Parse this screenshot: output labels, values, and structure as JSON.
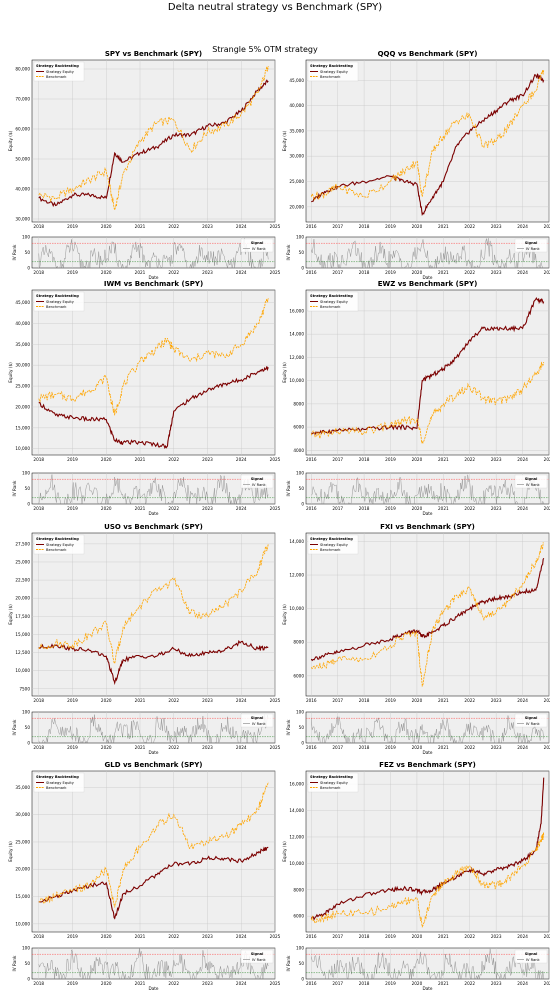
{
  "figure": {
    "title": "Delta neutral strategy vs Benchmark (SPY)",
    "subtitle": "Strangle 5% OTM strategy"
  },
  "colors": {
    "strategy": "#7b0000",
    "benchmark": "#ffa500",
    "iv_rank": "#808080",
    "upper_threshold": "#ff4040",
    "lower_threshold": "#2e8b2e",
    "plot_bg": "#efefef"
  },
  "legend": {
    "main_title": "Strategy Backtesting",
    "strategy_label": "Strategy Equity",
    "benchmark_label": "Benchmark",
    "signal_title": "Signal",
    "iv_label": "IV Rank"
  },
  "chart_data": [
    {
      "type": "line",
      "title": "SPY vs Benchmark (SPY)",
      "xlabel": "",
      "ylabel": "Equity ($)",
      "grid": true,
      "legend": "top-left",
      "x": [
        2018,
        2018.5,
        2019,
        2019.5,
        2020,
        2020.25,
        2020.5,
        2021,
        2021.5,
        2022,
        2022.5,
        2023,
        2023.5,
        2024,
        2024.5,
        2024.8
      ],
      "xlim": [
        2017.8,
        2025
      ],
      "ylim": [
        29000,
        83000
      ],
      "yticks": [
        30000,
        40000,
        50000,
        60000,
        70000,
        80000
      ],
      "yticklabels": [
        "30,000",
        "40,000",
        "50,000",
        "60,000",
        "70,000",
        "80,000"
      ],
      "xticks": [
        2018,
        2019,
        2020,
        2021,
        2022,
        2023,
        2024,
        2025
      ],
      "xticklabels": [
        "2018",
        "2019",
        "2020",
        "2021",
        "2022",
        "2023",
        "2024",
        "2025"
      ],
      "series": [
        {
          "name": "Strategy Equity",
          "values": [
            37000,
            34500,
            38000,
            38000,
            37000,
            52000,
            49000,
            52000,
            54000,
            58000,
            58000,
            61000,
            62000,
            66000,
            73000,
            76000
          ]
        },
        {
          "name": "Benchmark",
          "values": [
            38000,
            37000,
            40000,
            43000,
            46000,
            33000,
            45000,
            56000,
            62000,
            63000,
            53000,
            59000,
            61000,
            65000,
            72000,
            81000
          ]
        }
      ],
      "iv": {
        "ylabel": "IV Rank",
        "xlabel": "Date",
        "ylim": [
          0,
          100
        ],
        "yticks": [
          0,
          50,
          100
        ],
        "yticklabels": [
          "0",
          "50",
          "100"
        ],
        "upper": 80,
        "lower": 20
      }
    },
    {
      "type": "line",
      "title": "QQQ vs Benchmark (SPY)",
      "xlabel": "",
      "ylabel": "Equity ($)",
      "grid": true,
      "legend": "top-left",
      "x": [
        2016,
        2016.5,
        2017,
        2018,
        2019,
        2019.5,
        2020,
        2020.2,
        2020.6,
        2021,
        2021.5,
        2022,
        2022.5,
        2023,
        2023.5,
        2024,
        2024.5,
        2024.8
      ],
      "xlim": [
        2015.8,
        2025
      ],
      "ylim": [
        17000,
        49000
      ],
      "yticks": [
        20000,
        25000,
        30000,
        35000,
        40000,
        45000
      ],
      "yticklabels": [
        "20,000",
        "25,000",
        "30,000",
        "35,000",
        "40,000",
        "45,000"
      ],
      "xticks": [
        2016,
        2017,
        2018,
        2019,
        2020,
        2021,
        2022,
        2023,
        2024,
        2025
      ],
      "xticklabels": [
        "2016",
        "2017",
        "2018",
        "2019",
        "2020",
        "2021",
        "2022",
        "2023",
        "2024",
        "2025"
      ],
      "series": [
        {
          "name": "Strategy Equity",
          "values": [
            21000,
            23000,
            24000,
            25000,
            26000,
            25000,
            24500,
            18500,
            22000,
            25000,
            32000,
            35000,
            37000,
            39000,
            41000,
            42000,
            46000,
            45000
          ]
        },
        {
          "name": "Benchmark",
          "values": [
            22000,
            22500,
            24000,
            22000,
            25000,
            27000,
            29000,
            22000,
            31000,
            34000,
            37000,
            38000,
            32000,
            33000,
            36000,
            40000,
            43000,
            47000
          ]
        }
      ],
      "iv": {
        "ylabel": "IV Rank",
        "xlabel": "Date",
        "ylim": [
          0,
          100
        ],
        "yticks": [
          0,
          50,
          100
        ],
        "yticklabels": [
          "0",
          "50",
          "100"
        ],
        "upper": 80,
        "lower": 20
      }
    },
    {
      "type": "line",
      "title": "IWM vs Benchmark (SPY)",
      "xlabel": "",
      "ylabel": "Equity ($)",
      "grid": true,
      "legend": "top-left",
      "x": [
        2018,
        2018.5,
        2019,
        2019.5,
        2020,
        2020.25,
        2020.5,
        2021,
        2021.5,
        2021.8,
        2022,
        2022.5,
        2023,
        2023.5,
        2024,
        2024.5,
        2024.8
      ],
      "xlim": [
        2017.8,
        2025
      ],
      "ylim": [
        8500,
        48000
      ],
      "yticks": [
        10000,
        15000,
        20000,
        25000,
        30000,
        35000,
        40000,
        45000
      ],
      "yticklabels": [
        "10,000",
        "15,000",
        "20,000",
        "25,000",
        "30,000",
        "35,000",
        "40,000",
        "45,000"
      ],
      "xticks": [
        2018,
        2019,
        2020,
        2021,
        2022,
        2023,
        2024,
        2025
      ],
      "xticklabels": [
        "2018",
        "2019",
        "2020",
        "2021",
        "2022",
        "2023",
        "2024",
        "2025"
      ],
      "series": [
        {
          "name": "Strategy Equity",
          "values": [
            21000,
            18000,
            17500,
            17000,
            17000,
            12000,
            11500,
            11500,
            11000,
            10500,
            19000,
            22000,
            24000,
            25500,
            26500,
            28500,
            29500
          ]
        },
        {
          "name": "Benchmark",
          "values": [
            22000,
            23000,
            22000,
            24000,
            27000,
            18000,
            25000,
            31000,
            34000,
            36000,
            34000,
            31000,
            33000,
            32000,
            35000,
            40000,
            46000
          ]
        }
      ],
      "iv": {
        "ylabel": "IV Rank",
        "xlabel": "Date",
        "ylim": [
          0,
          100
        ],
        "yticks": [
          0,
          50,
          100
        ],
        "yticklabels": [
          "0",
          "50",
          "100"
        ],
        "upper": 80,
        "lower": 20
      }
    },
    {
      "type": "line",
      "title": "EWZ vs Benchmark (SPY)",
      "xlabel": "",
      "ylabel": "Equity ($)",
      "grid": true,
      "legend": "top-left",
      "x": [
        2016,
        2016.5,
        2017,
        2018,
        2019,
        2019.5,
        2020,
        2020.2,
        2020.6,
        2021,
        2021.5,
        2022,
        2022.5,
        2023,
        2023.5,
        2024,
        2024.5,
        2024.8
      ],
      "xlim": [
        2015.8,
        2025
      ],
      "ylim": [
        3600,
        17800
      ],
      "yticks": [
        4000,
        6000,
        8000,
        10000,
        12000,
        14000,
        16000
      ],
      "yticklabels": [
        "4000",
        "6000",
        "8000",
        "10,000",
        "12,000",
        "14,000",
        "16,000"
      ],
      "xticks": [
        2016,
        2017,
        2018,
        2019,
        2020,
        2021,
        2022,
        2023,
        2024,
        2025
      ],
      "xticklabels": [
        "2016",
        "2017",
        "2018",
        "2019",
        "2020",
        "2021",
        "2022",
        "2023",
        "2024",
        "2025"
      ],
      "series": [
        {
          "name": "Strategy Equity",
          "values": [
            5500,
            5600,
            5700,
            5800,
            6000,
            6000,
            5900,
            10000,
            10500,
            11000,
            12000,
            13500,
            14500,
            14500,
            14500,
            14500,
            17000,
            16800
          ]
        },
        {
          "name": "Benchmark",
          "values": [
            5300,
            5400,
            5600,
            5600,
            6200,
            6500,
            6700,
            4800,
            7000,
            8000,
            8800,
            9500,
            8500,
            8200,
            8500,
            9300,
            10500,
            11600
          ]
        }
      ],
      "iv": {
        "ylabel": "IV Rank",
        "xlabel": "Date",
        "ylim": [
          0,
          100
        ],
        "yticks": [
          0,
          50,
          100
        ],
        "yticklabels": [
          "0",
          "50",
          "100"
        ],
        "upper": 80,
        "lower": 20
      }
    },
    {
      "type": "line",
      "title": "USO vs Benchmark (SPY)",
      "xlabel": "",
      "ylabel": "Equity ($)",
      "grid": true,
      "legend": "top-left",
      "x": [
        2018,
        2018.5,
        2019,
        2019.5,
        2020,
        2020.25,
        2020.5,
        2021,
        2021.5,
        2022,
        2022.5,
        2023,
        2023.5,
        2024,
        2024.5,
        2024.8
      ],
      "xlim": [
        2017.8,
        2025
      ],
      "ylim": [
        6500,
        29000
      ],
      "yticks": [
        7500,
        10000,
        12500,
        15000,
        17500,
        20000,
        22500,
        25000,
        27500
      ],
      "yticklabels": [
        "7500",
        "10,000",
        "12,500",
        "15,000",
        "17,500",
        "20,000",
        "22,500",
        "25,000",
        "27,500"
      ],
      "xticks": [
        2018,
        2019,
        2020,
        2021,
        2022,
        2023,
        2024,
        2025
      ],
      "xticklabels": [
        "2018",
        "2019",
        "2020",
        "2021",
        "2022",
        "2023",
        "2024",
        "2025"
      ],
      "series": [
        {
          "name": "Strategy Equity",
          "values": [
            13200,
            13500,
            13000,
            12800,
            12000,
            8300,
            11500,
            12000,
            12000,
            13000,
            12000,
            12500,
            12800,
            14000,
            13000,
            13200
          ]
        },
        {
          "name": "Benchmark",
          "values": [
            13000,
            13800,
            13500,
            15000,
            16500,
            11000,
            16000,
            19000,
            21000,
            22500,
            18000,
            17500,
            19000,
            21000,
            24000,
            27500
          ]
        }
      ],
      "iv": {
        "ylabel": "IV Rank",
        "xlabel": "Date",
        "ylim": [
          0,
          100
        ],
        "yticks": [
          0,
          50,
          100
        ],
        "yticklabels": [
          "0",
          "50",
          "100"
        ],
        "upper": 80,
        "lower": 20
      }
    },
    {
      "type": "line",
      "title": "FXI vs Benchmark (SPY)",
      "xlabel": "",
      "ylabel": "Equity ($)",
      "grid": true,
      "legend": "top-left",
      "x": [
        2016,
        2016.5,
        2017,
        2018,
        2019,
        2019.5,
        2020,
        2020.2,
        2020.6,
        2021,
        2021.5,
        2022,
        2022.5,
        2023,
        2023.5,
        2024,
        2024.5,
        2024.8
      ],
      "xlim": [
        2015.8,
        2025
      ],
      "ylim": [
        4800,
        14500
      ],
      "yticks": [
        6000,
        8000,
        10000,
        12000,
        14000
      ],
      "yticklabels": [
        "6000",
        "8000",
        "10,000",
        "12,000",
        "14,000"
      ],
      "xticks": [
        2016,
        2017,
        2018,
        2019,
        2020,
        2021,
        2022,
        2023,
        2024,
        2025
      ],
      "xticklabels": [
        "2016",
        "2017",
        "2018",
        "2019",
        "2020",
        "2021",
        "2022",
        "2023",
        "2024",
        "2025"
      ],
      "series": [
        {
          "name": "Strategy Equity",
          "values": [
            7000,
            7200,
            7400,
            7800,
            8200,
            8500,
            8700,
            8300,
            8600,
            9000,
            9500,
            10000,
            10400,
            10600,
            10700,
            11000,
            11100,
            13000
          ]
        },
        {
          "name": "Benchmark",
          "values": [
            6500,
            6600,
            7000,
            7000,
            7800,
            8400,
            8500,
            5400,
            8800,
            9800,
            10800,
            11200,
            9500,
            9800,
            10500,
            11500,
            12800,
            13900
          ]
        }
      ],
      "iv": {
        "ylabel": "IV Rank",
        "xlabel": "Date",
        "ylim": [
          0,
          100
        ],
        "yticks": [
          0,
          50,
          100
        ],
        "yticklabels": [
          "0",
          "50",
          "100"
        ],
        "upper": 80,
        "lower": 20
      }
    },
    {
      "type": "line",
      "title": "GLD vs Benchmark (SPY)",
      "xlabel": "",
      "ylabel": "Equity ($)",
      "grid": true,
      "legend": "top-left",
      "x": [
        2018,
        2018.5,
        2019,
        2019.5,
        2020,
        2020.25,
        2020.5,
        2021,
        2021.5,
        2022,
        2022.5,
        2023,
        2023.5,
        2024,
        2024.5,
        2024.8
      ],
      "xlim": [
        2017.8,
        2025
      ],
      "ylim": [
        8500,
        38000
      ],
      "yticks": [
        10000,
        15000,
        20000,
        25000,
        30000,
        35000
      ],
      "yticklabels": [
        "10,000",
        "15,000",
        "20,000",
        "25,000",
        "30,000",
        "35,000"
      ],
      "xticks": [
        2018,
        2019,
        2020,
        2021,
        2022,
        2023,
        2024,
        2025
      ],
      "xticklabels": [
        "2018",
        "2019",
        "2020",
        "2021",
        "2022",
        "2023",
        "2024",
        "2025"
      ],
      "series": [
        {
          "name": "Strategy Equity",
          "values": [
            14000,
            15000,
            16000,
            17000,
            17500,
            11000,
            15500,
            17000,
            19000,
            21000,
            21000,
            22000,
            22000,
            21500,
            23000,
            24000
          ]
        },
        {
          "name": "Benchmark",
          "values": [
            14000,
            15000,
            16000,
            17000,
            20000,
            13000,
            20000,
            24000,
            28000,
            30000,
            24000,
            25000,
            26000,
            28000,
            31000,
            36000
          ]
        }
      ],
      "iv": {
        "ylabel": "IV Rank",
        "xlabel": "Date",
        "ylim": [
          0,
          100
        ],
        "yticks": [
          0,
          50,
          100
        ],
        "yticklabels": [
          "0",
          "50",
          "100"
        ],
        "upper": 80,
        "lower": 20
      }
    },
    {
      "type": "line",
      "title": "FEZ vs Benchmark (SPY)",
      "xlabel": "",
      "ylabel": "Equity ($)",
      "grid": true,
      "legend": "top-left",
      "x": [
        2016,
        2016.5,
        2017,
        2018,
        2019,
        2019.5,
        2020,
        2020.2,
        2020.6,
        2021,
        2021.5,
        2022,
        2022.5,
        2023,
        2023.5,
        2024,
        2024.5,
        2024.7,
        2024.8
      ],
      "xlim": [
        2015.8,
        2025
      ],
      "ylim": [
        4800,
        17000
      ],
      "yticks": [
        6000,
        8000,
        10000,
        12000,
        14000,
        16000
      ],
      "yticklabels": [
        "6000",
        "8000",
        "10,000",
        "12,000",
        "14,000",
        "16,000"
      ],
      "xticks": [
        2016,
        2017,
        2018,
        2019,
        2020,
        2021,
        2022,
        2023,
        2024,
        2025
      ],
      "xticklabels": [
        "2016",
        "2017",
        "2018",
        "2019",
        "2020",
        "2021",
        "2022",
        "2023",
        "2024",
        "2025"
      ],
      "series": [
        {
          "name": "Strategy Equity",
          "values": [
            5800,
            6200,
            6900,
            7600,
            8000,
            8100,
            8000,
            7800,
            8000,
            8500,
            9000,
            9500,
            9200,
            9500,
            9800,
            10200,
            11000,
            13000,
            16500
          ]
        },
        {
          "name": "Benchmark",
          "values": [
            5700,
            5900,
            6200,
            6200,
            6700,
            7100,
            7400,
            5200,
            7600,
            8500,
            9200,
            9800,
            8400,
            8300,
            8900,
            9800,
            11000,
            11800,
            12100
          ]
        }
      ],
      "iv": {
        "ylabel": "IV Rank",
        "xlabel": "Date",
        "ylim": [
          0,
          100
        ],
        "yticks": [
          0,
          50,
          100
        ],
        "yticklabels": [
          "0",
          "50",
          "100"
        ],
        "upper": 80,
        "lower": 20
      }
    }
  ]
}
